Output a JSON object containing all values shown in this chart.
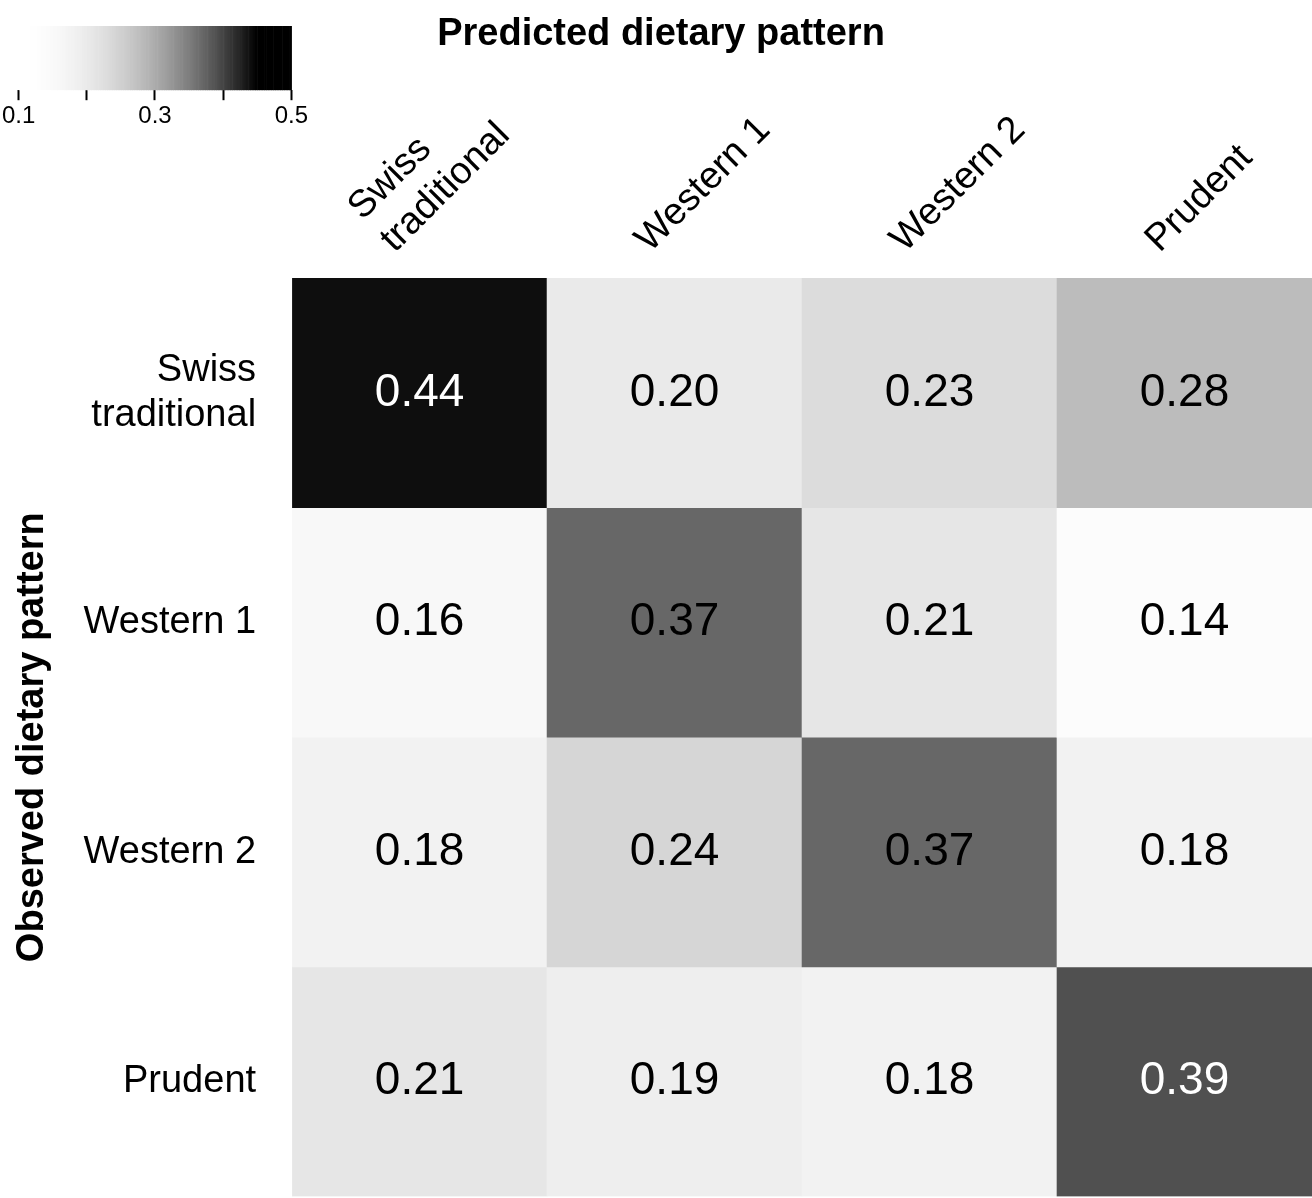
{
  "chart_data": {
    "type": "heatmap",
    "title": "Predicted dietary pattern",
    "ylabel": "Observed dietary pattern",
    "categories": [
      "Swiss traditional",
      "Western 1",
      "Western 2",
      "Prudent"
    ],
    "y_categories": [
      "Swiss traditional",
      "Western 1",
      "Western 2",
      "Prudent"
    ],
    "cells": [
      [
        0.44,
        0.2,
        0.23,
        0.28
      ],
      [
        0.16,
        0.37,
        0.21,
        0.14
      ],
      [
        0.18,
        0.24,
        0.37,
        0.18
      ],
      [
        0.21,
        0.19,
        0.18,
        0.39
      ]
    ],
    "cell_labels": [
      [
        "0.44",
        "0.20",
        "0.23",
        "0.28"
      ],
      [
        "0.16",
        "0.37",
        "0.21",
        "0.14"
      ],
      [
        "0.18",
        "0.24",
        "0.37",
        "0.18"
      ],
      [
        "0.21",
        "0.19",
        "0.18",
        "0.39"
      ]
    ],
    "clim": [
      0.1,
      0.5
    ],
    "cticks": [
      0.1,
      {
        "value": 0.2,
        "label": null
      },
      0.3,
      {
        "value": 0.4,
        "label": null
      },
      0.5
    ]
  }
}
